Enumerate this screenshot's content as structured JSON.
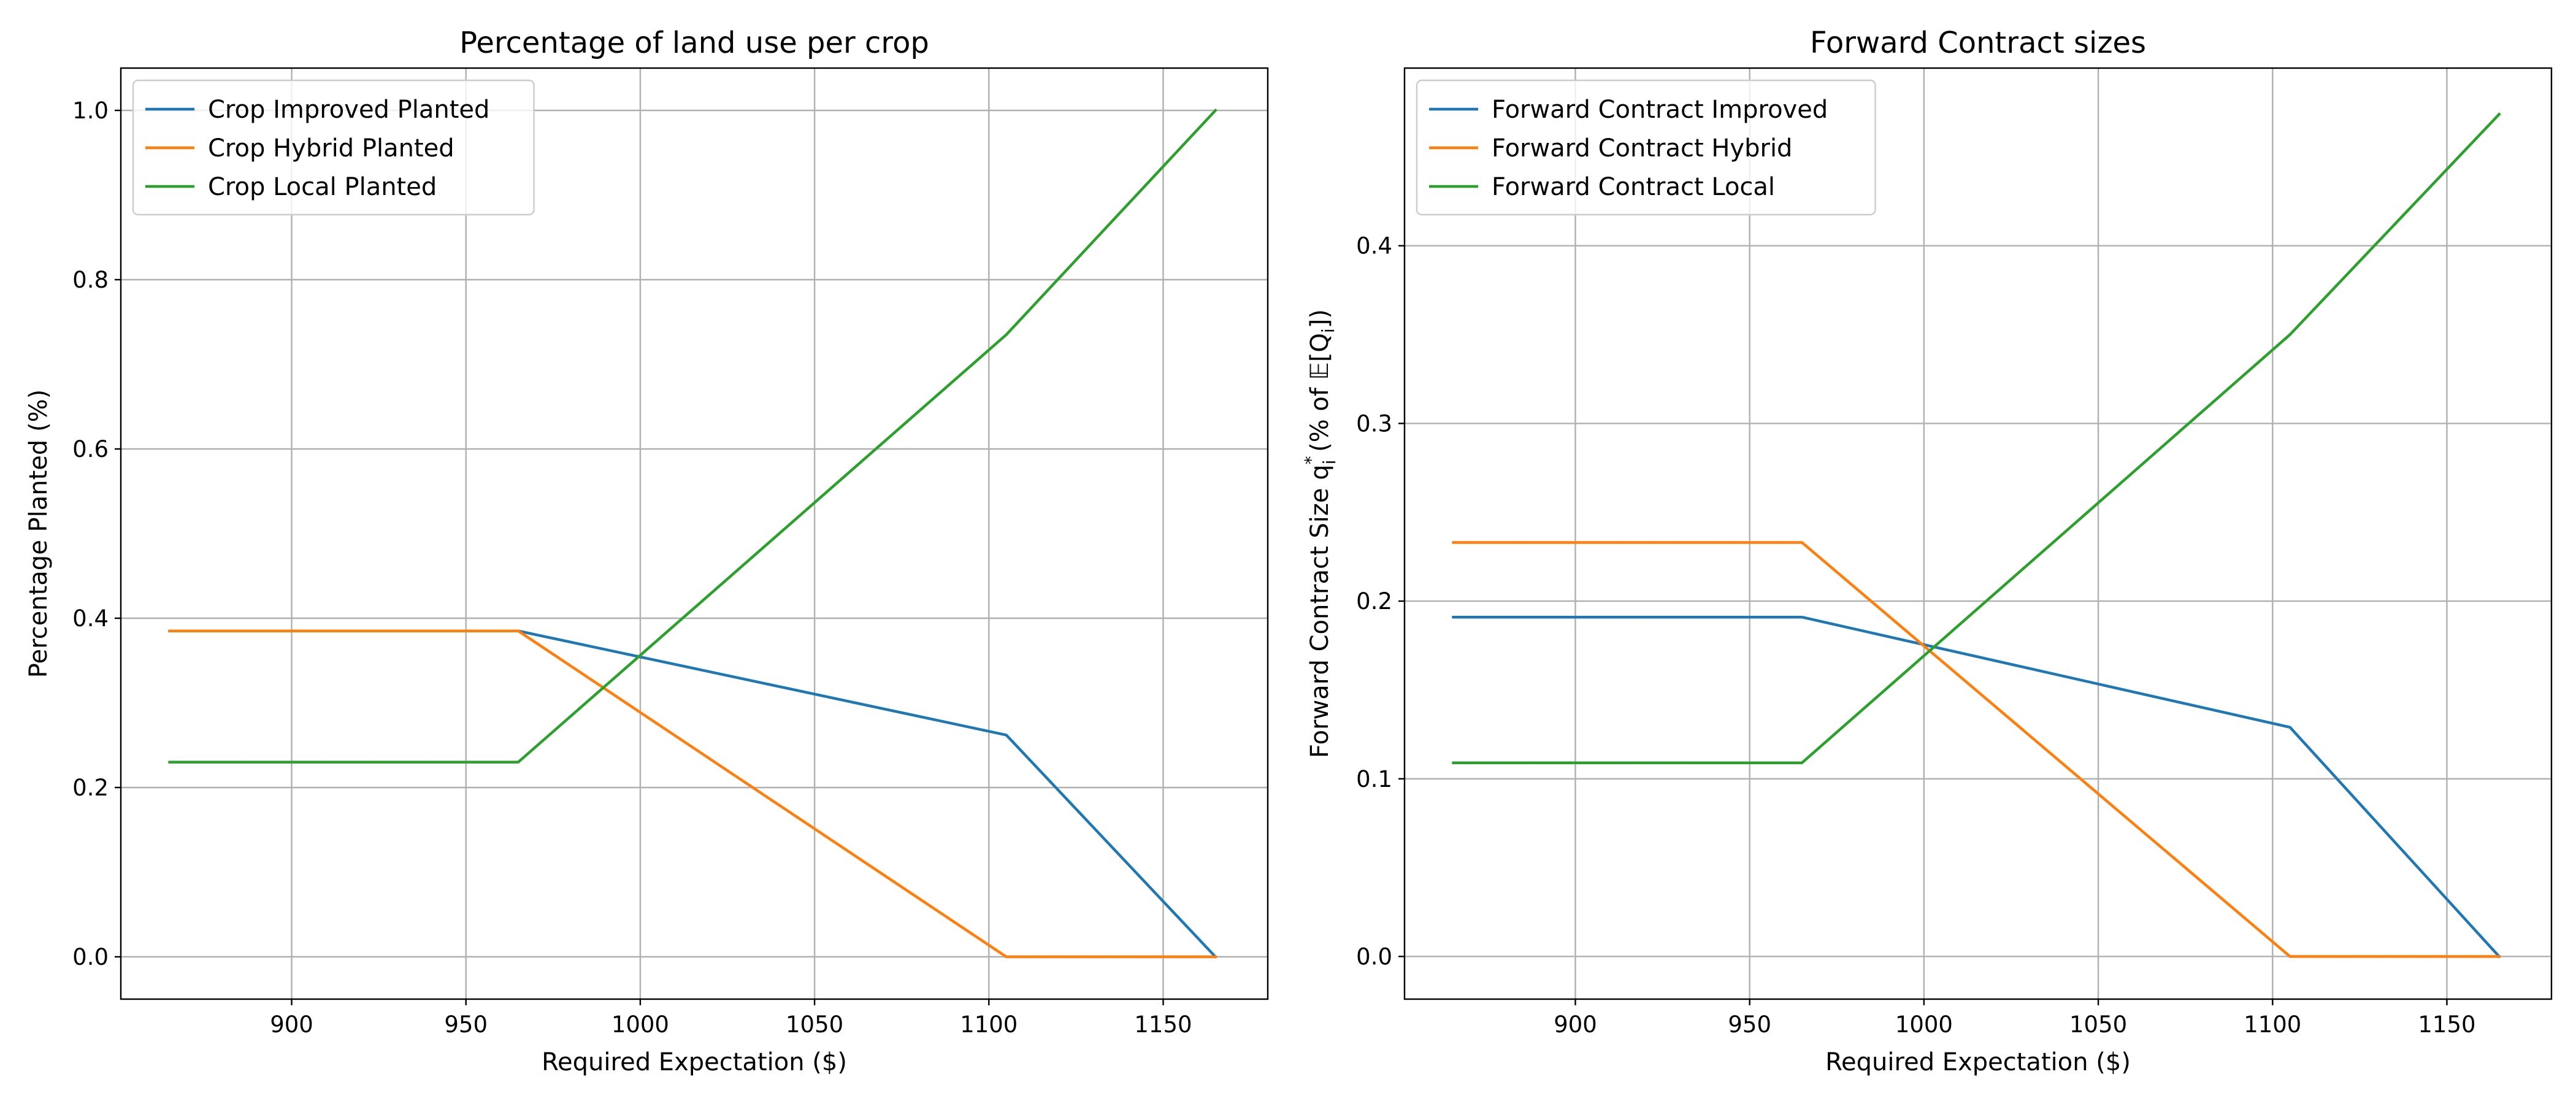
{
  "chart_data": [
    {
      "type": "line",
      "title": "Percentage of land use per crop",
      "xlabel": "Required Expectation ($)",
      "ylabel": "Percentage Planted (%)",
      "xlim": [
        851,
        1180
      ],
      "ylim": [
        -0.05,
        1.05
      ],
      "xticks": [
        900,
        950,
        1000,
        1050,
        1100,
        1150
      ],
      "yticks": [
        0.0,
        0.2,
        0.4,
        0.6,
        0.8,
        1.0
      ],
      "xtick_labels": [
        "900",
        "950",
        "1000",
        "1050",
        "1100",
        "1150"
      ],
      "ytick_labels": [
        "0.0",
        "0.2",
        "0.4",
        "0.6",
        "0.8",
        "1.0"
      ],
      "grid": true,
      "legend_position": "top-left",
      "series": [
        {
          "name": "Crop Improved Planted",
          "color": "#1f77b4",
          "x": [
            865,
            965,
            1105,
            1165
          ],
          "y": [
            0.385,
            0.385,
            0.262,
            0.0
          ]
        },
        {
          "name": "Crop Hybrid Planted",
          "color": "#ff7f0e",
          "x": [
            865,
            965,
            1105,
            1165
          ],
          "y": [
            0.385,
            0.385,
            0.0,
            0.0
          ]
        },
        {
          "name": "Crop Local Planted",
          "color": "#2ca02c",
          "x": [
            865,
            965,
            1105,
            1165
          ],
          "y": [
            0.23,
            0.23,
            0.735,
            1.0
          ]
        }
      ]
    },
    {
      "type": "line",
      "title": "Forward Contract sizes",
      "xlabel": "Required Expectation ($)",
      "ylabel": "Forward Contract Size  q",
      "ylabel_sup": "*",
      "ylabel_sub": "i",
      "ylabel_rest": " (% of 𝔼[Q",
      "ylabel_rest_sub": "i",
      "ylabel_end": "])",
      "xlim": [
        851,
        1180
      ],
      "ylim": [
        -0.024,
        0.5
      ],
      "xticks": [
        900,
        950,
        1000,
        1050,
        1100,
        1150
      ],
      "yticks": [
        0.0,
        0.1,
        0.2,
        0.3,
        0.4
      ],
      "xtick_labels": [
        "900",
        "950",
        "1000",
        "1050",
        "1100",
        "1150"
      ],
      "ytick_labels": [
        "0.0",
        "0.1",
        "0.2",
        "0.3",
        "0.4"
      ],
      "grid": true,
      "legend_position": "top-left",
      "series": [
        {
          "name": "Forward Contract Improved",
          "color": "#1f77b4",
          "x": [
            865,
            965,
            1105,
            1165
          ],
          "y": [
            0.191,
            0.191,
            0.129,
            0.0
          ]
        },
        {
          "name": "Forward Contract Hybrid",
          "color": "#ff7f0e",
          "x": [
            865,
            965,
            1105,
            1165
          ],
          "y": [
            0.233,
            0.233,
            0.0,
            0.0
          ]
        },
        {
          "name": "Forward Contract Local",
          "color": "#2ca02c",
          "x": [
            865,
            965,
            1105,
            1165
          ],
          "y": [
            0.109,
            0.109,
            0.35,
            0.474
          ]
        }
      ]
    }
  ]
}
